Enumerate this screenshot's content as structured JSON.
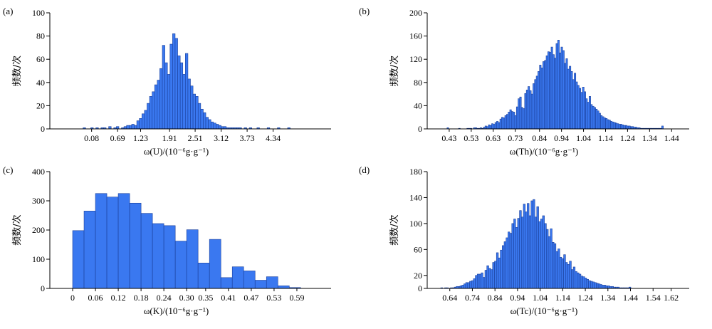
{
  "chart_data": [
    {
      "type": "bar",
      "panel_label": "(a)",
      "xlabel": "ω(U)/(10⁻⁶g·g⁻¹)",
      "ylabel": "频数/次",
      "ylim": [
        0,
        100
      ],
      "yticks": [
        0,
        20,
        40,
        60,
        80,
        100
      ],
      "xlim": [
        -0.9,
        5.7
      ],
      "xticks": [
        0.08,
        0.69,
        1.23,
        1.91,
        2.51,
        3.12,
        3.73,
        4.34
      ],
      "bin_start": -0.12,
      "bin_width": 0.06,
      "values": [
        1,
        0,
        0,
        1,
        0,
        1,
        0,
        1,
        1,
        0,
        2,
        0,
        1,
        2,
        0,
        1,
        2,
        3,
        3,
        4,
        3,
        7,
        9,
        13,
        16,
        22,
        28,
        32,
        38,
        42,
        52,
        72,
        57,
        47,
        73,
        82,
        78,
        63,
        57,
        47,
        65,
        43,
        37,
        30,
        28,
        22,
        17,
        14,
        10,
        8,
        6,
        5,
        4,
        3,
        2,
        2,
        1,
        1,
        1,
        1,
        1,
        1,
        0,
        1,
        0,
        1,
        0,
        0,
        1,
        0,
        0,
        0,
        1,
        0,
        0,
        0,
        1,
        0,
        0,
        0,
        1
      ]
    },
    {
      "type": "bar",
      "panel_label": "(b)",
      "xlabel": "ω(Th)/(10⁻⁶g·g⁻¹)",
      "ylabel": "频数/次",
      "ylim": [
        0,
        200
      ],
      "yticks": [
        0,
        40,
        80,
        120,
        160,
        200
      ],
      "xlim": [
        0.33,
        1.52
      ],
      "xticks": [
        0.43,
        0.53,
        0.63,
        0.73,
        0.84,
        0.94,
        1.04,
        1.14,
        1.24,
        1.34,
        1.44
      ],
      "bin_start": 0.42,
      "bin_width": 0.0075,
      "values": [
        2,
        0,
        0,
        0,
        0,
        0,
        0,
        1,
        0,
        0,
        0,
        0,
        1,
        1,
        1,
        0,
        2,
        2,
        1,
        1,
        2,
        1,
        3,
        5,
        4,
        7,
        6,
        9,
        8,
        11,
        13,
        11,
        17,
        20,
        19,
        23,
        25,
        29,
        33,
        30,
        29,
        23,
        38,
        52,
        55,
        37,
        35,
        61,
        67,
        73,
        66,
        60,
        78,
        85,
        91,
        99,
        110,
        105,
        116,
        118,
        126,
        133,
        132,
        141,
        128,
        122,
        147,
        153,
        131,
        141,
        135,
        113,
        121,
        103,
        108,
        99,
        85,
        96,
        81,
        75,
        70,
        63,
        72,
        64,
        52,
        46,
        56,
        42,
        39,
        37,
        34,
        31,
        27,
        23,
        21,
        19,
        18,
        16,
        15,
        13,
        12,
        11,
        10,
        9,
        8,
        8,
        7,
        6,
        6,
        5,
        5,
        4,
        4,
        3,
        3,
        2,
        2,
        1,
        1,
        1,
        1,
        1,
        1,
        1,
        1,
        1,
        1,
        1,
        1,
        1,
        5
      ]
    },
    {
      "type": "bar",
      "panel_label": "(c)",
      "xlabel": "ω(K)/(10⁻⁶g·g⁻¹)",
      "ylabel": "频数/次",
      "ylim": [
        0,
        400
      ],
      "yticks": [
        0,
        100,
        200,
        300,
        400
      ],
      "xlim": [
        -0.06,
        0.68
      ],
      "xticks": [
        0,
        0.06,
        0.12,
        0.18,
        0.24,
        0.3,
        0.35,
        0.41,
        0.47,
        0.53,
        0.59
      ],
      "xtick_labels": [
        "0",
        "0.06",
        "0.12",
        "0.18",
        "0.24",
        "0.30",
        "0.35",
        "0.41",
        "0.47",
        "0.53",
        "0.59"
      ],
      "bin_start": 0.0,
      "bin_width": 0.03,
      "values": [
        198,
        265,
        325,
        313,
        325,
        292,
        257,
        222,
        215,
        162,
        201,
        87,
        168,
        37,
        74,
        60,
        28,
        40,
        9,
        3
      ]
    },
    {
      "type": "bar",
      "panel_label": "(d)",
      "xlabel": "ω(Tc)/(10⁻⁶g·g⁻¹)",
      "ylabel": "频数/次",
      "ylim": [
        0,
        180
      ],
      "yticks": [
        0,
        20,
        60,
        100,
        140,
        180
      ],
      "xlim": [
        0.54,
        1.7
      ],
      "xticks": [
        0.64,
        0.74,
        0.84,
        0.94,
        1.04,
        1.14,
        1.24,
        1.34,
        1.44,
        1.54,
        1.62
      ],
      "bin_start": 0.6,
      "bin_width": 0.0085,
      "values": [
        1,
        0,
        1,
        1,
        0,
        1,
        1,
        2,
        3,
        3,
        4,
        5,
        7,
        9,
        9,
        11,
        12,
        15,
        20,
        22,
        22,
        24,
        17,
        28,
        35,
        31,
        29,
        40,
        42,
        55,
        47,
        59,
        66,
        72,
        78,
        87,
        85,
        100,
        107,
        94,
        108,
        120,
        110,
        130,
        118,
        131,
        112,
        135,
        137,
        110,
        126,
        103,
        107,
        112,
        100,
        91,
        80,
        92,
        71,
        69,
        57,
        61,
        48,
        46,
        52,
        40,
        37,
        42,
        29,
        33,
        26,
        24,
        22,
        19,
        18,
        16,
        14,
        12,
        11,
        10,
        9,
        8,
        7,
        6,
        5,
        5,
        4,
        4,
        3,
        3,
        2,
        2,
        2,
        1,
        1,
        1,
        1,
        1,
        2
      ]
    }
  ]
}
